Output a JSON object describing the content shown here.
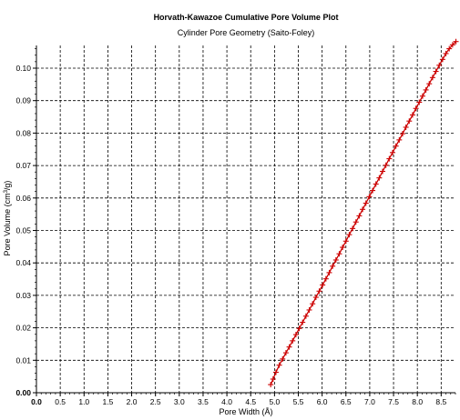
{
  "chart_data": {
    "type": "scatter",
    "title": "Horvath-Kawazoe Cumulative Pore Volume Plot",
    "subtitle": "Cylinder Pore Geometry (Saito-Foley)",
    "xlabel": "Pore Width (Å)",
    "ylabel_main": "Pore Volume (cm",
    "ylabel_sup": "3",
    "ylabel_tail": "/g)",
    "xlim": [
      0.0,
      8.8
    ],
    "ylim": [
      0.0,
      0.107
    ],
    "x_ticks": [
      0.0,
      0.5,
      1.0,
      1.5,
      2.0,
      2.5,
      3.0,
      3.5,
      4.0,
      4.5,
      5.0,
      5.5,
      6.0,
      6.5,
      7.0,
      7.5,
      8.0,
      8.5
    ],
    "x_tick_labels": [
      "0.0",
      "0.5",
      "1.0",
      "1.5",
      "2.0",
      "2.5",
      "3.0",
      "3.5",
      "4.0",
      "4.5",
      "5.0",
      "5.5",
      "6.0",
      "6.5",
      "7.0",
      "7.5",
      "8.0",
      "8.5"
    ],
    "y_ticks": [
      0.0,
      0.01,
      0.02,
      0.03,
      0.04,
      0.05,
      0.06,
      0.07,
      0.08,
      0.09,
      0.1
    ],
    "y_tick_labels": [
      "0.00",
      "0.01",
      "0.02",
      "0.03",
      "0.04",
      "0.05",
      "0.06",
      "0.07",
      "0.08",
      "0.09",
      "0.10"
    ],
    "grid": true,
    "series_color": "#cc0000",
    "series": [
      {
        "x": [
          4.92,
          4.97,
          5.03,
          5.1,
          5.17,
          5.24,
          5.31,
          5.38,
          5.45,
          5.52,
          5.59,
          5.66,
          5.73,
          5.8,
          5.87,
          5.94,
          6.01,
          6.08,
          6.15,
          6.22,
          6.29,
          6.36,
          6.43,
          6.5,
          6.57,
          6.64,
          6.71,
          6.78,
          6.85,
          6.92,
          6.99,
          7.06,
          7.13,
          7.2,
          7.27,
          7.34,
          7.41,
          7.48,
          7.55,
          7.62,
          7.69,
          7.76,
          7.83,
          7.9,
          7.97,
          8.04,
          8.11,
          8.18,
          8.25,
          8.32,
          8.39,
          8.46,
          8.53,
          8.6,
          8.67,
          8.74,
          8.81
        ],
        "y": [
          0.0025,
          0.0042,
          0.0063,
          0.0085,
          0.0104,
          0.0123,
          0.0141,
          0.016,
          0.0179,
          0.0198,
          0.0217,
          0.0236,
          0.0255,
          0.0274,
          0.0294,
          0.0313,
          0.0332,
          0.0351,
          0.037,
          0.039,
          0.0409,
          0.0428,
          0.0448,
          0.0467,
          0.0487,
          0.0506,
          0.0526,
          0.0545,
          0.0565,
          0.0584,
          0.0604,
          0.0623,
          0.0643,
          0.0662,
          0.0682,
          0.0701,
          0.0721,
          0.074,
          0.076,
          0.0779,
          0.0798,
          0.0818,
          0.0837,
          0.0856,
          0.0876,
          0.0895,
          0.0914,
          0.0933,
          0.0952,
          0.0971,
          0.099,
          0.1009,
          0.1027,
          0.1045,
          0.106,
          0.1072,
          0.1082
        ]
      }
    ]
  }
}
